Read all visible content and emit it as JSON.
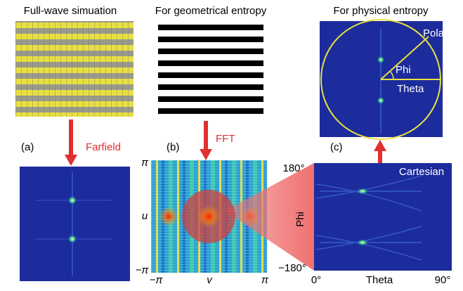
{
  "panels": [
    {
      "title": "Full-wave simuation",
      "label": "(a)",
      "arrow_label": "Farfield"
    },
    {
      "title": "For geometrical entropy",
      "label": "(b)",
      "arrow_label": "FFT",
      "axes": {
        "y_top": "π",
        "y_name": "u",
        "y_bottom": "−π",
        "x_left": "−π",
        "x_name": "v",
        "x_right": "π"
      }
    },
    {
      "title": "For physical entropy",
      "label": "(c)",
      "polar": {
        "name": "Polar",
        "phi": "Phi",
        "theta": "Theta"
      },
      "cartesian": {
        "name": "Cartesian",
        "y_top": "180°",
        "y_name": "Phi",
        "y_bottom": "−180°",
        "x_left": "0°",
        "x_name": "Theta",
        "x_right": "90°"
      }
    }
  ]
}
